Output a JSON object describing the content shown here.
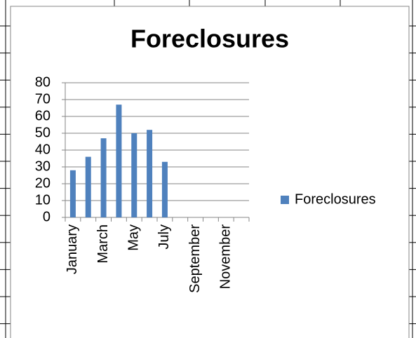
{
  "chart_data": {
    "type": "bar",
    "title": "Foreclosures",
    "categories": [
      "January",
      null,
      "March",
      null,
      "May",
      null,
      "July",
      null,
      "September",
      null,
      "November",
      null
    ],
    "series": [
      {
        "name": "Foreclosures",
        "color": "#4f81bd",
        "values": [
          28,
          36,
          47,
          67,
          50,
          52,
          33,
          null,
          null,
          null,
          null,
          null
        ]
      }
    ],
    "ylim": [
      0,
      80
    ],
    "yticks": [
      0,
      10,
      20,
      30,
      40,
      50,
      60,
      70,
      80
    ],
    "grid": true,
    "legend": "right"
  }
}
